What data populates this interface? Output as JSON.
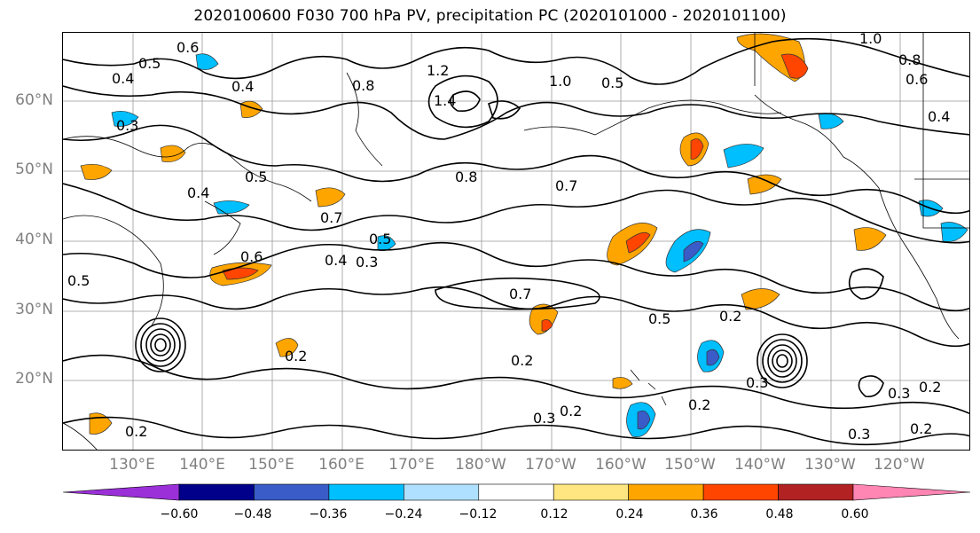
{
  "title": "2020100600 F030 700 hPa PV, precipitation PC (2020101000 - 2020101100)",
  "lat_labels": [
    "60°N",
    "50°N",
    "40°N",
    "30°N",
    "20°N"
  ],
  "lon_labels": [
    "130°E",
    "140°E",
    "150°E",
    "160°E",
    "170°E",
    "180°W",
    "170°W",
    "160°W",
    "150°W",
    "140°W",
    "130°W",
    "120°W"
  ],
  "contour_labels": [
    "0.6",
    "0.5",
    "0.4",
    "0.4",
    "0.3",
    "1.2",
    "1.4",
    "0.8",
    "1.0",
    "0.5",
    "1.0",
    "0.8",
    "0.6",
    "0.4",
    "0.5",
    "0.4",
    "0.8",
    "0.7",
    "0.7",
    "0.5",
    "0.6",
    "0.4",
    "0.3",
    "0.7",
    "0.5",
    "0.2",
    "0.2",
    "0.2",
    "0.3",
    "0.2",
    "0.2",
    "0.3",
    "0.2",
    "0.3",
    "0.2",
    "0.2",
    "0.3",
    "0.5"
  ],
  "colorbar": {
    "ticks": [
      "−0.60",
      "−0.48",
      "−0.36",
      "−0.24",
      "−0.12",
      "0.12",
      "0.24",
      "0.36",
      "0.48",
      "0.60"
    ],
    "colors": [
      "#9b30d9",
      "#00008b",
      "#3a5cc9",
      "#00bfff",
      "#b0e0ff",
      "#ffffff",
      "#ffe680",
      "#ffa500",
      "#ff4500",
      "#b22222",
      "#ff85b3"
    ]
  }
}
